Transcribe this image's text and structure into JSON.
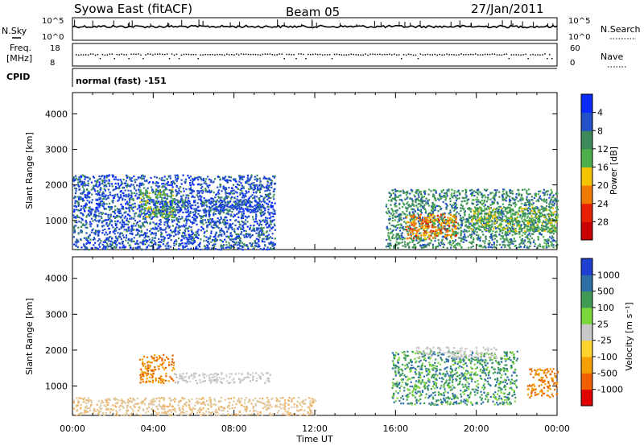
{
  "header": {
    "station": "Syowa East (fitACF)",
    "beam": "Beam 05",
    "date": "27/Jan/2011"
  },
  "strip": {
    "nsky_label": "N.Sky",
    "nsky_ticks": [
      "10^5",
      "10^0"
    ],
    "nsearch_label": "N.Search",
    "nsearch_ticks": [
      "10^5",
      "10^0"
    ],
    "freq_label_line1": "Freq.",
    "freq_label_line2": "[MHz]",
    "freq_ticks": [
      "18",
      "8"
    ],
    "nave_label": "Nave",
    "nave_ticks": [
      "60",
      "0"
    ],
    "cpid_label": "CPID",
    "cpid_text": "normal (fast) -151"
  },
  "chart_data": [
    {
      "type": "heatmap",
      "title": "",
      "xlabel": "Time UT",
      "ylabel": "Slant Range [km]",
      "x_ticks": [
        "00:00",
        "04:00",
        "08:00",
        "12:00",
        "16:00",
        "20:00",
        "00:00"
      ],
      "xlim_hours": [
        0,
        24
      ],
      "y_ticks": [
        1000,
        2000,
        3000,
        4000
      ],
      "ylim": [
        180,
        4600
      ],
      "colorbar": {
        "label": "Power [dB]",
        "ticks": [
          "4",
          "8",
          "12",
          "16",
          "20",
          "24",
          "28"
        ],
        "colors": [
          "#0a2bff",
          "#2450c8",
          "#3c8a5a",
          "#4db04a",
          "#f5c400",
          "#f07a00",
          "#e62000",
          "#c80000"
        ]
      },
      "echo_regions": [
        {
          "t0": 0.0,
          "t1": 10.0,
          "r0": 200,
          "r1": 2300,
          "level": 1
        },
        {
          "t0": 3.3,
          "t1": 5.0,
          "r0": 1100,
          "r1": 1900,
          "level": 3
        },
        {
          "t0": 4.0,
          "t1": 9.5,
          "r0": 1250,
          "r1": 1600,
          "level": 1
        },
        {
          "t0": 15.5,
          "t1": 24.0,
          "r0": 250,
          "r1": 1900,
          "level": 2
        },
        {
          "t0": 16.5,
          "t1": 19.0,
          "r0": 500,
          "r1": 1200,
          "level": 5
        },
        {
          "t0": 19.5,
          "t1": 24.0,
          "r0": 700,
          "r1": 1400,
          "level": 3
        }
      ]
    },
    {
      "type": "heatmap",
      "title": "",
      "xlabel": "Time UT",
      "ylabel": "Slant Range [km]",
      "x_ticks": [
        "00:00",
        "04:00",
        "08:00",
        "12:00",
        "16:00",
        "20:00",
        "00:00"
      ],
      "xlim_hours": [
        0,
        24
      ],
      "y_ticks": [
        1000,
        2000,
        3000,
        4000
      ],
      "ylim": [
        180,
        4600
      ],
      "colorbar": {
        "label": "Velocity [m s⁻¹]",
        "ticks": [
          "1000",
          "500",
          "100",
          "25",
          "-25",
          "-100",
          "-500",
          "-1000"
        ],
        "colors": [
          "#1f3fd0",
          "#2f6fa8",
          "#3f9a55",
          "#7ad63a",
          "#c8c8c8",
          "#ffd22e",
          "#f5a000",
          "#f06000",
          "#e00000"
        ]
      },
      "echo_regions": [
        {
          "t0": 3.3,
          "t1": 5.0,
          "r0": 1100,
          "r1": 1900,
          "level": "orange"
        },
        {
          "t0": 5.0,
          "t1": 9.8,
          "r0": 1100,
          "r1": 1400,
          "level": "gray"
        },
        {
          "t0": 0.0,
          "t1": 12.0,
          "r0": 200,
          "r1": 700,
          "level": "tan"
        },
        {
          "t0": 15.8,
          "t1": 22.0,
          "r0": 500,
          "r1": 2000,
          "level": "green"
        },
        {
          "t0": 17.0,
          "t1": 21.0,
          "r0": 1800,
          "r1": 2100,
          "level": "gray"
        },
        {
          "t0": 22.5,
          "t1": 24.0,
          "r0": 700,
          "r1": 1500,
          "level": "orange"
        }
      ]
    }
  ]
}
